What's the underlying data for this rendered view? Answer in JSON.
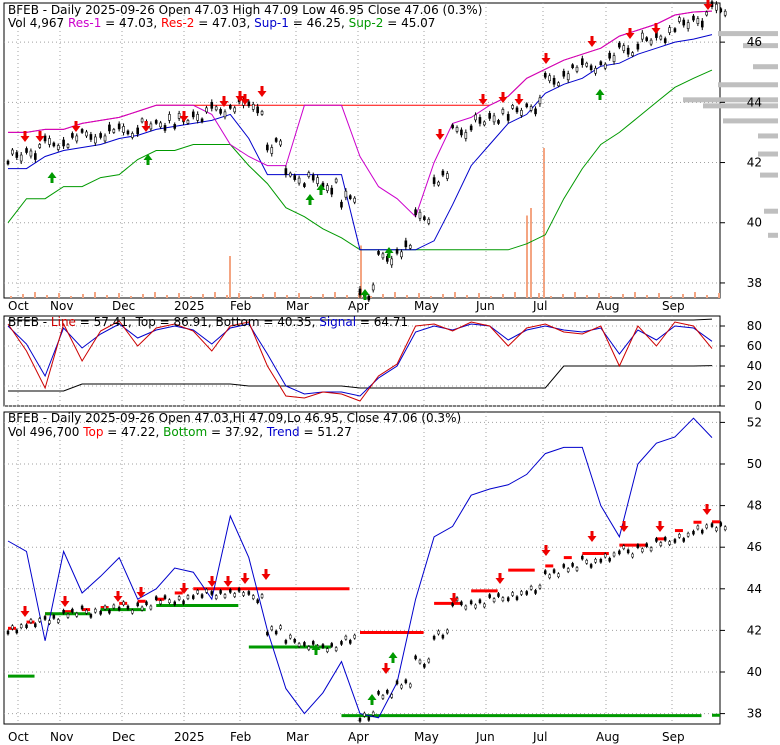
{
  "panels": {
    "top": {
      "header_line1": [
        {
          "text": "BFEB - Daily 2025-09-26 Open 47.03  High 47.09  Low 46.95  Close 47.06 (0.3%)",
          "color": "#000000"
        }
      ],
      "header_line2": [
        {
          "text": "Vol 4,967 ",
          "color": "#000000"
        },
        {
          "text": "Res-1",
          "color": "#cc00cc"
        },
        {
          "text": " = 47.03, ",
          "color": "#000000"
        },
        {
          "text": "Res-2",
          "color": "#ff0000"
        },
        {
          "text": " = 47.03, ",
          "color": "#000000"
        },
        {
          "text": "Sup-1",
          "color": "#0000cc"
        },
        {
          "text": " = 46.25, ",
          "color": "#000000"
        },
        {
          "text": "Sup-2",
          "color": "#009900"
        },
        {
          "text": " = 45.07",
          "color": "#000000"
        }
      ],
      "y_ticks": [
        "46",
        "44",
        "42",
        "40",
        "38"
      ]
    },
    "middle": {
      "header_line1": [
        {
          "text": "BFEB - ",
          "color": "#000000"
        },
        {
          "text": "Line",
          "color": "#cc0000"
        },
        {
          "text": " = 57.41, ",
          "color": "#000000"
        },
        {
          "text": "Top",
          "color": "#000000"
        },
        {
          "text": " = 86.91, ",
          "color": "#000000"
        },
        {
          "text": "Bottom",
          "color": "#000000"
        },
        {
          "text": " = 40.35, ",
          "color": "#000000"
        },
        {
          "text": "Signal",
          "color": "#0000cc"
        },
        {
          "text": " = 64.71",
          "color": "#000000"
        }
      ],
      "y_ticks": [
        "80",
        "60",
        "40",
        "20",
        "0"
      ]
    },
    "bottom": {
      "header_line1": [
        {
          "text": "BFEB - Daily 2025-09-26 Open 47.03,Hi 47.09,Lo 46.95, Close 47.06 (0.3%)",
          "color": "#000000"
        }
      ],
      "header_line2": [
        {
          "text": "Vol 496,700 ",
          "color": "#000000"
        },
        {
          "text": "Top",
          "color": "#ff0000"
        },
        {
          "text": " = 47.22, ",
          "color": "#000000"
        },
        {
          "text": "Bottom",
          "color": "#009900"
        },
        {
          "text": " = 37.92, ",
          "color": "#000000"
        },
        {
          "text": "Trend",
          "color": "#0000cc"
        },
        {
          "text": " = 51.27",
          "color": "#000000"
        }
      ],
      "y_ticks": [
        "52",
        "50",
        "48",
        "46",
        "44",
        "42",
        "40",
        "38"
      ]
    }
  },
  "x_labels": [
    "Oct",
    "Nov",
    "Dec",
    "2025",
    "Feb",
    "Mar",
    "Apr",
    "May",
    "Jun",
    "Jul",
    "Aug",
    "Sep"
  ],
  "colors": {
    "candle": "#000000",
    "res1": "#cc00cc",
    "res2": "#ff0000",
    "sup1": "#0000cc",
    "sup2": "#009900",
    "volume": "#f4a582",
    "volume_profile": "#bfbfbf",
    "grid": "#a0a0a0",
    "arrow_down": "#ee0000",
    "arrow_up": "#009900",
    "line": "#cc0000",
    "signal": "#0000cc",
    "top_bottom": "#000000"
  },
  "chart_data": [
    {
      "type": "candlestick",
      "title": "BFEB - Daily 2025-09-26",
      "y_range": [
        37.5,
        47.3
      ],
      "x_period": "2024-10 to 2025-09",
      "series": [
        {
          "name": "Close",
          "values": [
            42.2,
            42.4,
            42.6,
            42.7,
            42.9,
            43.0,
            43.1,
            43.2,
            43.3,
            43.4,
            43.6,
            43.7,
            43.9,
            43.8,
            42.6,
            41.6,
            41.4,
            41.2,
            40.8,
            37.7,
            38.8,
            39.1,
            40.2,
            41.5,
            43.1,
            43.3,
            43.5,
            43.7,
            43.9,
            44.7,
            45.0,
            45.2,
            45.4,
            45.8,
            46.0,
            46.2,
            46.6,
            46.8,
            47.06
          ]
        },
        {
          "name": "Res-1",
          "values": [
            43.0,
            43.0,
            43.1,
            43.1,
            43.3,
            43.4,
            43.5,
            43.7,
            43.9,
            43.9,
            43.9,
            43.6,
            42.6,
            42.2,
            41.9,
            41.9,
            43.9,
            43.9,
            43.9,
            42.2,
            41.2,
            40.8,
            40.2,
            42.0,
            43.3,
            43.5,
            43.9,
            44.2,
            44.8,
            45.1,
            45.4,
            45.6,
            45.8,
            46.2,
            46.4,
            46.6,
            46.9,
            47.0,
            47.03
          ]
        },
        {
          "name": "Res-2",
          "values": [
            43.0,
            43.0,
            43.1,
            43.1,
            43.3,
            43.4,
            43.5,
            43.7,
            43.9,
            43.9,
            43.9,
            43.9,
            43.9,
            43.9,
            43.9,
            43.9,
            43.9,
            43.9,
            43.9,
            43.9,
            43.9,
            43.9,
            43.9,
            43.9,
            43.9,
            43.9,
            43.9,
            44.2,
            44.8,
            45.1,
            45.4,
            45.6,
            45.8,
            46.2,
            46.4,
            46.6,
            46.9,
            47.0,
            47.03
          ]
        },
        {
          "name": "Sup-1",
          "values": [
            41.8,
            41.8,
            42.2,
            42.4,
            42.5,
            42.6,
            42.8,
            42.9,
            43.1,
            43.2,
            43.3,
            43.4,
            43.6,
            42.8,
            41.6,
            41.6,
            41.6,
            41.6,
            41.6,
            39.1,
            39.1,
            39.1,
            39.1,
            39.4,
            40.6,
            41.9,
            42.6,
            43.3,
            43.6,
            44.3,
            44.6,
            44.8,
            45.2,
            45.3,
            45.6,
            45.8,
            46.0,
            46.1,
            46.25
          ]
        },
        {
          "name": "Sup-2",
          "values": [
            40.0,
            40.8,
            40.8,
            41.2,
            41.2,
            41.5,
            41.6,
            42.1,
            42.4,
            42.4,
            42.6,
            42.6,
            42.6,
            41.9,
            41.3,
            40.5,
            40.2,
            39.8,
            39.5,
            39.1,
            39.1,
            39.1,
            39.1,
            39.1,
            39.1,
            39.1,
            39.1,
            39.1,
            39.3,
            39.6,
            40.8,
            41.8,
            42.6,
            43.0,
            43.5,
            44.0,
            44.5,
            44.8,
            45.07
          ]
        }
      ],
      "volume_spikes": [
        {
          "month": "Jul",
          "relative": 1.0
        },
        {
          "month": "Jul",
          "relative": 0.6
        },
        {
          "month": "Jun",
          "relative": 0.55
        },
        {
          "month": "Feb",
          "relative": 0.28
        },
        {
          "month": "Apr",
          "relative": 0.35
        }
      ]
    },
    {
      "type": "line",
      "title": "BFEB - Line / Signal",
      "y_range": [
        0,
        90
      ],
      "series": [
        {
          "name": "Line",
          "values": [
            82,
            55,
            18,
            82,
            45,
            75,
            85,
            60,
            78,
            82,
            75,
            55,
            80,
            84,
            40,
            10,
            8,
            14,
            12,
            5,
            30,
            42,
            80,
            82,
            75,
            84,
            80,
            60,
            78,
            82,
            74,
            72,
            80,
            40,
            80,
            60,
            84,
            80,
            57.41
          ]
        },
        {
          "name": "Signal",
          "values": [
            80,
            62,
            30,
            78,
            58,
            72,
            82,
            68,
            76,
            80,
            76,
            62,
            78,
            82,
            52,
            20,
            12,
            14,
            14,
            10,
            28,
            40,
            74,
            80,
            76,
            82,
            80,
            66,
            76,
            80,
            76,
            74,
            78,
            52,
            76,
            66,
            80,
            78,
            64.71
          ]
        },
        {
          "name": "Top",
          "values": [
            86,
            86,
            86,
            86,
            86,
            86,
            86,
            86,
            86,
            86,
            86,
            86,
            86,
            86,
            86,
            86,
            86,
            86,
            86,
            86,
            86,
            86,
            86,
            86,
            86,
            86,
            86,
            86,
            86,
            86,
            86,
            86,
            86,
            86,
            86,
            86,
            86,
            86,
            86.91
          ]
        },
        {
          "name": "Bottom",
          "values": [
            15,
            15,
            15,
            15,
            22,
            22,
            22,
            22,
            22,
            22,
            22,
            22,
            22,
            20,
            20,
            20,
            20,
            20,
            20,
            18,
            18,
            18,
            18,
            18,
            18,
            18,
            18,
            18,
            18,
            18,
            40,
            40,
            40,
            40,
            40,
            40,
            40,
            40,
            40.35
          ]
        }
      ]
    },
    {
      "type": "line",
      "title": "BFEB - Trend",
      "y_range": [
        37.5,
        52.5
      ],
      "series": [
        {
          "name": "Close",
          "values": [
            42.1,
            42.3,
            42.6,
            42.8,
            42.9,
            43.0,
            43.1,
            43.2,
            43.4,
            43.5,
            43.7,
            43.8,
            43.8,
            43.6,
            42.0,
            41.5,
            41.3,
            41.1,
            41.6,
            37.8,
            39.0,
            39.4,
            40.5,
            41.8,
            43.3,
            43.3,
            43.5,
            43.7,
            43.9,
            44.8,
            45.0,
            45.3,
            45.5,
            45.8,
            46.0,
            46.2,
            46.5,
            46.8,
            47.06
          ]
        },
        {
          "name": "Trend",
          "values": [
            46.3,
            45.8,
            41.5,
            45.8,
            43.8,
            44.6,
            45.5,
            43.5,
            44.0,
            45.0,
            44.8,
            43.5,
            47.5,
            45.5,
            42.0,
            39.2,
            38.0,
            39.0,
            40.5,
            38.0,
            37.8,
            39.5,
            43.5,
            46.5,
            47.0,
            48.5,
            48.8,
            49.0,
            49.5,
            50.5,
            50.8,
            50.8,
            48.0,
            46.5,
            50.0,
            51.0,
            51.3,
            52.2,
            51.27
          ]
        },
        {
          "name": "Top",
          "values": [
            42.1,
            42.4,
            42.8,
            42.9,
            43.0,
            43.1,
            43.3,
            43.4,
            43.5,
            43.8,
            44.0,
            44.0,
            44.0,
            44.0,
            44.0,
            44.0,
            44.0,
            44.0,
            44.0,
            41.9,
            41.9,
            41.9,
            41.9,
            43.3,
            43.3,
            43.9,
            43.9,
            44.9,
            44.9,
            45.1,
            45.5,
            45.7,
            45.7,
            46.1,
            46.1,
            46.4,
            46.8,
            47.2,
            47.22
          ]
        },
        {
          "name": "Bottom",
          "values": [
            39.8,
            39.8,
            42.8,
            42.8,
            42.8,
            43.0,
            43.0,
            43.0,
            43.2,
            43.2,
            43.2,
            43.2,
            43.2,
            41.2,
            41.2,
            41.2,
            41.2,
            41.2,
            37.9,
            37.9,
            37.9,
            37.9,
            37.9,
            37.9,
            37.9,
            37.9,
            37.9,
            37.9,
            37.9,
            37.9,
            37.9,
            37.9,
            37.9,
            37.9,
            37.9,
            37.9,
            37.9,
            37.9,
            37.92
          ]
        }
      ]
    }
  ]
}
